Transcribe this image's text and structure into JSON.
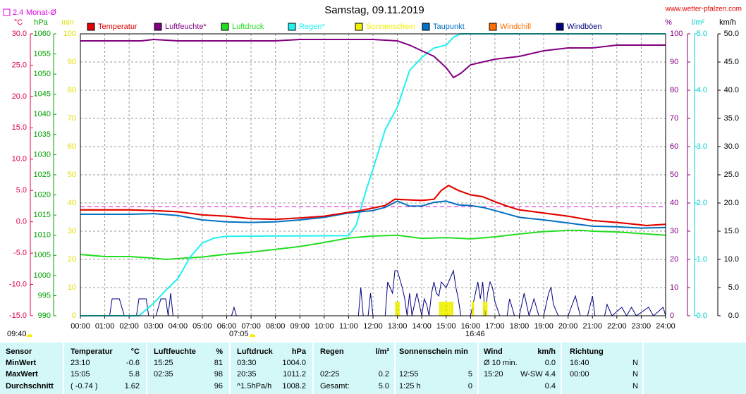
{
  "chart_data": {
    "type": "line",
    "title": "Samstag, 09.11.2019",
    "source": "www.wetter-pfalzen.com",
    "monthly_avg": 2.4,
    "monthly_avg_label": "Monat-Ø",
    "monthly_avg_color": "#e000e0",
    "annotations": [
      "09:40",
      "07:05",
      "16:46"
    ],
    "xlim": [
      0,
      24
    ],
    "xticks": [
      {
        "value": 0,
        "label": "00:00"
      },
      {
        "value": 1,
        "label": "01:00"
      },
      {
        "value": 2,
        "label": "02:00"
      },
      {
        "value": 3,
        "label": "03:00"
      },
      {
        "value": 4,
        "label": "04:00"
      },
      {
        "value": 5,
        "label": "05:00"
      },
      {
        "value": 6,
        "label": "06:00"
      },
      {
        "value": 7,
        "label": "07:00"
      },
      {
        "value": 8,
        "label": "08:00"
      },
      {
        "value": 9,
        "label": "09:00"
      },
      {
        "value": 10,
        "label": "10:00"
      },
      {
        "value": 11,
        "label": "11:00"
      },
      {
        "value": 12,
        "label": "12:00"
      },
      {
        "value": 13,
        "label": "13:00"
      },
      {
        "value": 14,
        "label": "14:00"
      },
      {
        "value": 15,
        "label": "15:00"
      },
      {
        "value": 16,
        "label": "16:00"
      },
      {
        "value": 17,
        "label": "17:00"
      },
      {
        "value": 18,
        "label": "18:00"
      },
      {
        "value": 19,
        "label": "19:00"
      },
      {
        "value": 20,
        "label": "20:00"
      },
      {
        "value": 21,
        "label": "21:00"
      },
      {
        "value": 22,
        "label": "22:00"
      },
      {
        "value": 23,
        "label": "23:00"
      },
      {
        "value": 24,
        "label": "24:00"
      }
    ],
    "grid": true,
    "axes": {
      "temp": {
        "unit": "°C",
        "color": "#e0004a",
        "lim": [
          -15,
          30
        ],
        "ticks": [
          {
            "value": 30,
            "label": "30.0"
          },
          {
            "value": 25,
            "label": "25.0"
          },
          {
            "value": 20,
            "label": "20.0"
          },
          {
            "value": 15,
            "label": "15.0"
          },
          {
            "value": 10,
            "label": "10.0"
          },
          {
            "value": 5,
            "label": "5.0"
          },
          {
            "value": 0,
            "label": "0.0"
          },
          {
            "value": -5,
            "label": "-5.0"
          },
          {
            "value": -10,
            "label": "-10.0"
          },
          {
            "value": -15,
            "label": "-15.0"
          }
        ]
      },
      "hpa": {
        "unit": "hPa",
        "color": "#00a000",
        "lim": [
          990,
          1060
        ],
        "ticks": [
          1060,
          1055,
          1050,
          1045,
          1040,
          1035,
          1030,
          1025,
          1020,
          1015,
          1010,
          1005,
          1000,
          995,
          990
        ]
      },
      "min": {
        "unit": "min",
        "color": "#e0e000",
        "lim": [
          0,
          100
        ],
        "ticks": [
          100,
          90,
          80,
          70,
          60,
          50,
          40,
          30,
          20,
          10,
          0
        ]
      },
      "pct": {
        "unit": "%",
        "color": "#800080",
        "lim": [
          0,
          100
        ],
        "ticks": [
          100,
          90,
          80,
          70,
          60,
          50,
          40,
          30,
          20,
          10,
          0
        ]
      },
      "rain": {
        "unit": "l/m²",
        "color": "#00d0d0",
        "lim": [
          0,
          5
        ],
        "ticks": [
          {
            "value": 5,
            "label": "5.0"
          },
          {
            "value": 4,
            "label": "4.0"
          },
          {
            "value": 3,
            "label": "3.0"
          },
          {
            "value": 2,
            "label": "2.0"
          },
          {
            "value": 1,
            "label": "1.0"
          },
          {
            "value": 0,
            "label": "0.0"
          }
        ]
      },
      "kmh": {
        "unit": "km/h",
        "color": "#000000",
        "lim": [
          0,
          50
        ],
        "ticks": [
          {
            "value": 50,
            "label": "50.0"
          },
          {
            "value": 45,
            "label": "45.0"
          },
          {
            "value": 40,
            "label": "40.0"
          },
          {
            "value": 35,
            "label": "35.0"
          },
          {
            "value": 30,
            "label": "30.0"
          },
          {
            "value": 25,
            "label": "25.0"
          },
          {
            "value": 20,
            "label": "20.0"
          },
          {
            "value": 15,
            "label": "15.0"
          },
          {
            "value": 10,
            "label": "10.0"
          },
          {
            "value": 5,
            "label": "5.0"
          },
          {
            "value": 0,
            "label": "0.0"
          }
        ]
      }
    },
    "series": [
      {
        "name": "Temperatur",
        "color": "#e00000",
        "axis": "temp",
        "kind": "line",
        "x": [
          0,
          1,
          2,
          3,
          4,
          5,
          6,
          7,
          8,
          9,
          10,
          11,
          11.5,
          12,
          12.5,
          12.9,
          13.5,
          14,
          14.5,
          14.8,
          15.1,
          15.5,
          16,
          16.5,
          17,
          17.5,
          18,
          19,
          20,
          21,
          22,
          23,
          23.2,
          24
        ],
        "values": [
          1.9,
          1.9,
          1.9,
          1.8,
          1.6,
          1.1,
          0.9,
          0.5,
          0.4,
          0.6,
          0.9,
          1.5,
          1.8,
          2.2,
          2.6,
          3.6,
          3.5,
          3.4,
          3.6,
          5.0,
          5.8,
          5.0,
          4.3,
          4.0,
          3.2,
          2.5,
          1.9,
          1.4,
          0.9,
          0.2,
          -0.1,
          -0.5,
          -0.6,
          -0.4
        ]
      },
      {
        "name": "Luftfeuchte*",
        "color": "#800080",
        "axis": "pct",
        "kind": "line",
        "x": [
          0,
          2.5,
          3,
          4,
          8,
          9,
          12,
          13,
          13.5,
          14,
          14.5,
          15,
          15.3,
          15.6,
          16,
          16.5,
          17,
          18,
          18.5,
          19,
          20,
          21,
          22,
          23,
          24
        ],
        "values": [
          97.5,
          97.5,
          98,
          97.5,
          97.5,
          98,
          98,
          97.5,
          96,
          94,
          92,
          88,
          84.5,
          86,
          89,
          90,
          91,
          92,
          93,
          94,
          95,
          95,
          96,
          96,
          96
        ]
      },
      {
        "name": "Luftdruck",
        "color": "#22dd22",
        "axis": "hpa",
        "kind": "line",
        "x": [
          0,
          1,
          2,
          3,
          3.5,
          4,
          5,
          6,
          7,
          8,
          9,
          10,
          11,
          12,
          13,
          14,
          15,
          16,
          17,
          18,
          19,
          20,
          20.6,
          21,
          22,
          23,
          24
        ],
        "values": [
          1005.2,
          1004.7,
          1004.7,
          1004.3,
          1004.0,
          1004.2,
          1004.6,
          1005.3,
          1005.8,
          1006.5,
          1007.2,
          1008.2,
          1009.3,
          1009.8,
          1010.0,
          1009.2,
          1009.4,
          1009.1,
          1009.6,
          1010.3,
          1010.9,
          1011.2,
          1011.2,
          1011.0,
          1010.8,
          1010.4,
          1010.0
        ]
      },
      {
        "name": "Regen*",
        "color": "#20f0f0",
        "axis": "rain",
        "kind": "line",
        "x": [
          0,
          2.4,
          3,
          3.5,
          4,
          4.5,
          5,
          5.5,
          6,
          11,
          11.3,
          11.7,
          12,
          12.5,
          13,
          13.5,
          14,
          14.5,
          15,
          15.3,
          15.6,
          24
        ],
        "values": [
          0,
          0,
          0.22,
          0.45,
          0.66,
          1.04,
          1.29,
          1.38,
          1.41,
          1.42,
          1.6,
          2.2,
          2.6,
          3.3,
          3.7,
          4.35,
          4.58,
          4.75,
          4.8,
          4.94,
          5.0,
          5.0
        ]
      },
      {
        "name": "Sonnenschein",
        "color": "#f0f000",
        "axis": "min",
        "kind": "bar",
        "x": [
          12.95,
          13.05,
          14.75,
          14.85,
          14.95,
          15.05,
          15.15,
          15.25,
          16.1,
          16.55,
          16.65
        ],
        "values": [
          5,
          5,
          5,
          5,
          5,
          5,
          5,
          5,
          5,
          5,
          5
        ]
      },
      {
        "name": "Taupunkt",
        "color": "#0070c0",
        "axis": "temp",
        "kind": "line",
        "x": [
          0,
          2,
          3,
          4,
          5,
          6,
          7,
          8,
          9,
          10,
          11,
          12,
          12.5,
          13,
          13.5,
          14,
          14.5,
          15,
          15.5,
          16,
          16.5,
          17,
          18,
          19,
          20,
          21,
          22,
          23,
          24
        ],
        "values": [
          1.2,
          1.2,
          1.3,
          1.0,
          0.3,
          0.0,
          -0.1,
          0.0,
          0.3,
          0.7,
          1.4,
          1.8,
          2.3,
          3.3,
          2.5,
          2.5,
          3.1,
          3.3,
          2.7,
          2.6,
          2.3,
          1.8,
          0.7,
          0.3,
          -0.2,
          -0.7,
          -0.8,
          -1.0,
          -0.9
        ]
      },
      {
        "name": "Windchill",
        "color": "#ff7000",
        "axis": "temp",
        "kind": "line",
        "x": [
          0,
          1,
          2,
          3,
          4,
          5,
          6,
          7,
          8,
          9,
          10,
          11,
          11.5,
          12,
          12.5,
          12.9,
          13.5,
          14,
          14.5,
          14.8,
          15.1,
          15.5,
          16,
          16.5,
          17,
          17.5,
          18,
          19,
          20,
          21,
          22,
          23,
          23.2,
          24
        ],
        "values": [
          1.9,
          1.9,
          1.9,
          1.8,
          1.6,
          1.1,
          0.9,
          0.5,
          0.4,
          0.6,
          0.9,
          1.5,
          1.8,
          2.2,
          2.6,
          3.6,
          3.5,
          3.4,
          3.6,
          5.0,
          5.8,
          5.0,
          4.3,
          4.0,
          3.2,
          2.5,
          1.9,
          1.4,
          0.9,
          0.2,
          -0.1,
          -0.5,
          -0.6,
          -0.4
        ]
      },
      {
        "name": "Windböen",
        "color": "#000080",
        "axis": "kmh",
        "kind": "line",
        "x": [
          0,
          1.2,
          1.3,
          1.6,
          1.8,
          2.3,
          2.4,
          2.7,
          2.8,
          3.1,
          3.3,
          3.5,
          3.6,
          3.7,
          3.8,
          6.2,
          6.3,
          6.4,
          11.4,
          11.5,
          11.6,
          11.8,
          11.9,
          12,
          12.5,
          12.6,
          12.8,
          12.9,
          13,
          13.1,
          13.2,
          13.3,
          13.4,
          13.5,
          13.6,
          13.8,
          14,
          14.1,
          14.2,
          14.3,
          14.4,
          14.5,
          14.6,
          14.7,
          14.8,
          15,
          15.2,
          15.3,
          15.4,
          15.5,
          15.6,
          16,
          16.2,
          16.3,
          16.4,
          16.5,
          16.6,
          16.7,
          16.8,
          16.9,
          17,
          17.2,
          17.5,
          17.6,
          17.8,
          18,
          18.2,
          18.4,
          18.6,
          18.8,
          19,
          19.2,
          19.3,
          19.4,
          19.6,
          20,
          20.3,
          20.5,
          20.8,
          21,
          21.1,
          21.5,
          21.6,
          21.8,
          22.2,
          22.4,
          22.6,
          22.8,
          23.3,
          23.5,
          23.9,
          24
        ],
        "values": [
          0,
          0,
          3,
          3,
          0,
          0,
          3,
          3,
          0,
          0,
          3,
          3,
          0,
          4,
          0,
          0,
          1.5,
          0,
          0,
          5,
          0,
          0,
          4,
          0,
          0,
          6,
          4,
          8,
          8,
          6.5,
          5,
          3,
          0,
          4,
          0,
          4,
          0,
          3,
          2,
          0,
          4,
          6,
          4,
          3.5,
          6,
          5,
          7,
          8,
          5,
          3,
          0,
          0,
          4,
          6,
          3,
          6,
          0,
          4,
          6,
          5,
          2.5,
          0,
          0,
          3,
          0,
          0,
          4,
          0,
          3,
          0,
          0,
          4,
          5,
          2,
          0,
          0,
          3.5,
          0,
          0,
          3.5,
          0,
          0,
          2,
          0,
          1.5,
          0,
          1.5,
          0,
          1.5,
          0,
          1.5,
          0
        ]
      }
    ]
  },
  "table": {
    "rows": [
      [
        "Sensor",
        "Temperatur",
        "°C",
        "Luftfeuchte",
        "%",
        "Luftdruck",
        "hPa",
        "Regen",
        "l/m²",
        "Sonnenschein min",
        null,
        "Wind",
        "km/h",
        "Richtung",
        null
      ],
      [
        "MinWert",
        "23:10",
        "-0.6",
        "15:25",
        "81",
        "03:30",
        "1004.0",
        null,
        null,
        null,
        null,
        "Ø 10 min.",
        "0.0",
        "16:40",
        "N"
      ],
      [
        "MaxWert",
        "15:05",
        "5.8",
        "02:35",
        "98",
        "20:35",
        "1011.2",
        "02:25",
        "0.2",
        "12:55",
        "5",
        "15:20",
        "W-SW 4.4",
        "00:00",
        "N"
      ],
      [
        "Durchschnitt",
        "( -0.74 )",
        "1.62",
        null,
        "96",
        "^1.5hPa/h",
        "1008.2",
        "Gesamt:",
        "5.0",
        "1:25 h",
        "0",
        null,
        "0.4",
        null,
        "N"
      ]
    ]
  }
}
